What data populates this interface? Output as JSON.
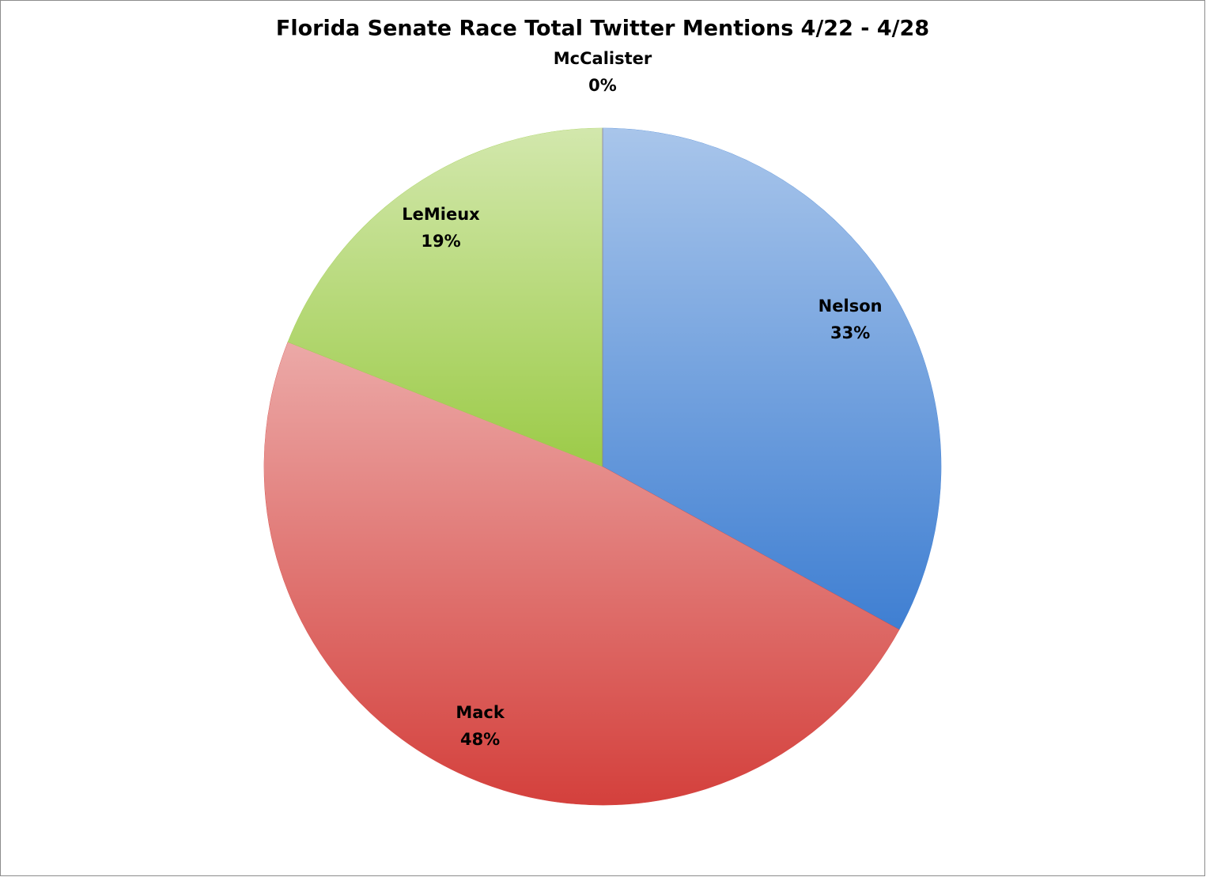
{
  "chart_data": {
    "type": "pie",
    "title": "Florida Senate Race Total Twitter Mentions 4/22 - 4/28",
    "categories": [
      "Nelson",
      "Mack",
      "LeMieux",
      "McCalister"
    ],
    "values": [
      33,
      48,
      19,
      0
    ],
    "value_labels": [
      "33%",
      "48%",
      "19%",
      "0%"
    ],
    "colors": [
      "#3f7fd2",
      "#d4403c",
      "#9ccb48",
      "#8064a2"
    ]
  }
}
